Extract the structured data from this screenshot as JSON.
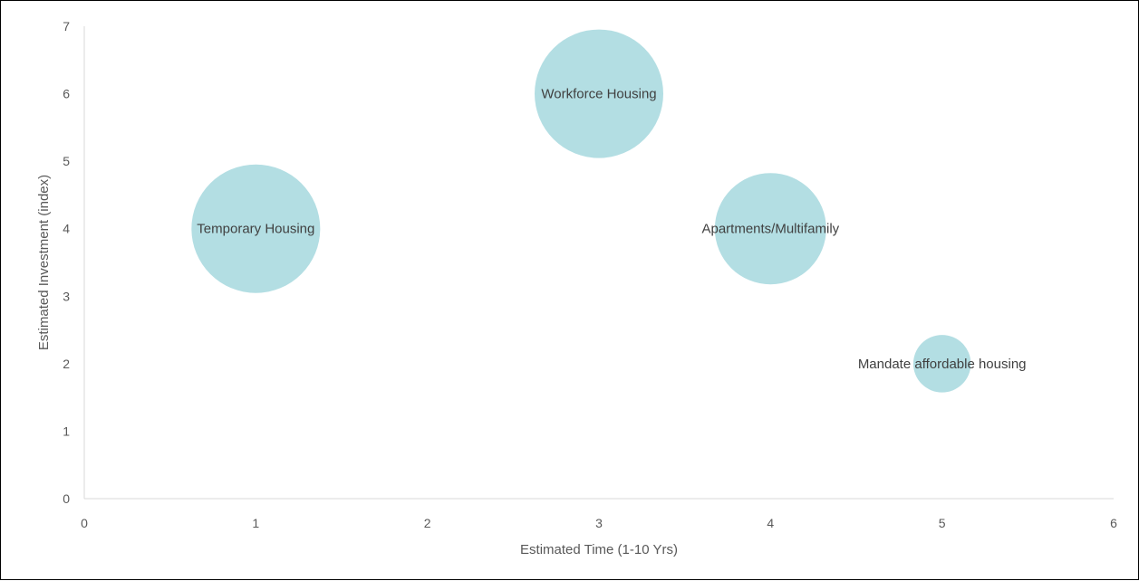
{
  "chart_data": {
    "type": "scatter",
    "subtype": "bubble",
    "xlabel": "Estimated Time (1-10 Yrs)",
    "ylabel": "Estimated Investment (index)",
    "xlim": [
      0,
      6
    ],
    "ylim": [
      0,
      7
    ],
    "x_ticks": [
      "0",
      "1",
      "2",
      "3",
      "4",
      "5",
      "6"
    ],
    "y_ticks": [
      "0",
      "1",
      "2",
      "3",
      "4",
      "5",
      "6",
      "7"
    ],
    "grid": false,
    "legend": "none",
    "bubble_color": "#b3dee3",
    "points": [
      {
        "label": "Temporary Housing",
        "x": 1,
        "y": 4,
        "size": 4
      },
      {
        "label": "Workforce Housing",
        "x": 3,
        "y": 6,
        "size": 4
      },
      {
        "label": "Apartments/Multifamily",
        "x": 4,
        "y": 4,
        "size": 3
      },
      {
        "label": "Mandate affordable housing",
        "x": 5,
        "y": 2,
        "size": 0.8
      }
    ]
  }
}
